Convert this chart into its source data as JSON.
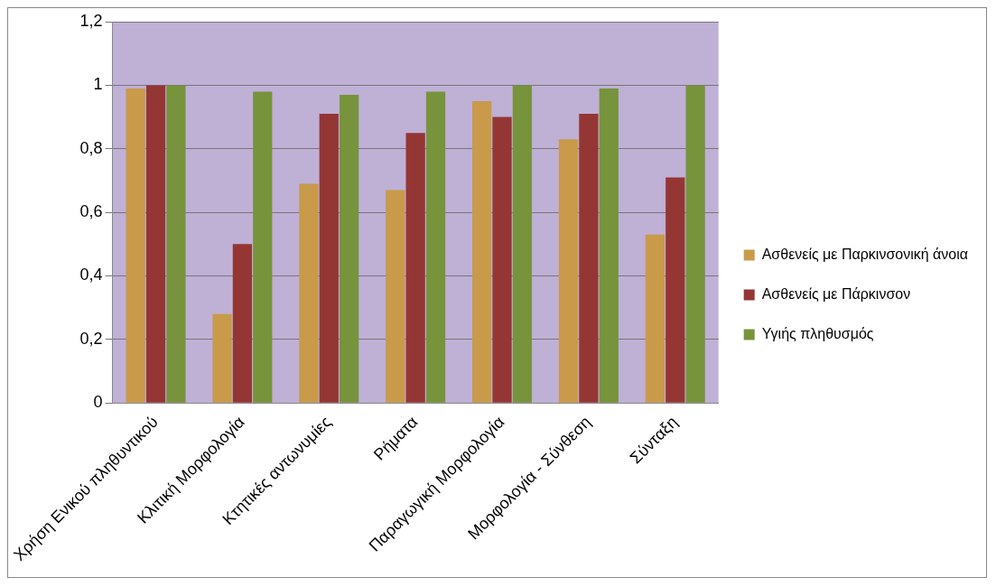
{
  "chart_data": {
    "type": "bar",
    "categories": [
      "Χρήση Ενικού πληθυντικού",
      "Κλιτική Μορφολογία",
      "Κτητικές αντωνυμίες",
      "Ρήματα",
      "Παραγωγική Μορφολογία",
      "Μορφολογία - Σύνθεση",
      "Σύνταξη"
    ],
    "series": [
      {
        "name": "Ασθενείς με Παρκινσονική άνοια",
        "color": "#c89a4a",
        "values": [
          0.99,
          0.28,
          0.69,
          0.67,
          0.95,
          0.83,
          0.53
        ]
      },
      {
        "name": "Ασθενείς με Πάρκινσον",
        "color": "#943634",
        "values": [
          1.0,
          0.5,
          0.91,
          0.85,
          0.9,
          0.91,
          0.71
        ]
      },
      {
        "name": "Υγιής πληθυσμός",
        "color": "#77933c",
        "values": [
          1.0,
          0.98,
          0.97,
          0.98,
          1.0,
          0.99,
          1.0
        ]
      }
    ],
    "ylim": [
      0,
      1.2
    ],
    "yticks": [
      0,
      {
        "value": 0.2,
        "label": "0,2"
      },
      {
        "value": 0.4,
        "label": "0,4"
      },
      {
        "value": 0.6,
        "label": "0,6"
      },
      {
        "value": 0.8,
        "label": "0,8"
      },
      1,
      {
        "value": 1.2,
        "label": "1,2"
      }
    ],
    "grid": "y",
    "legend": "right"
  }
}
